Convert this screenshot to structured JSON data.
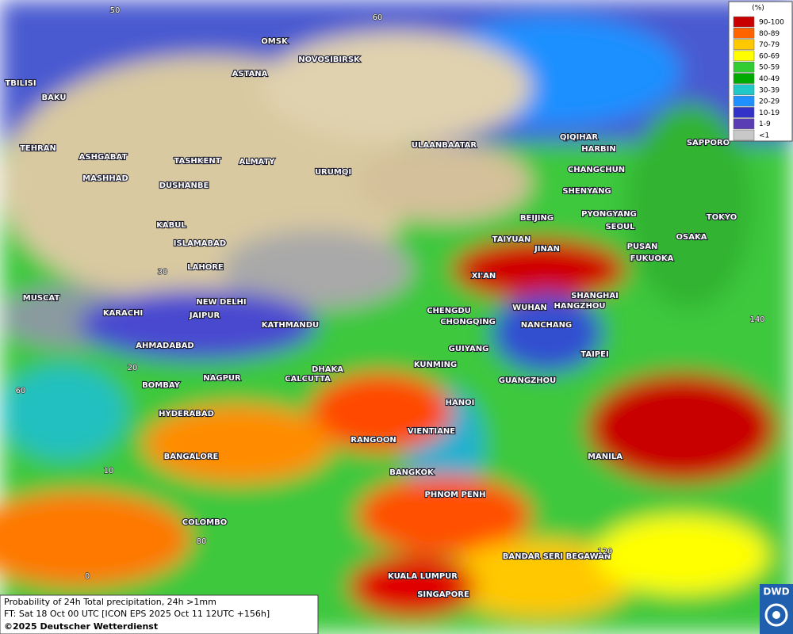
{
  "legend": {
    "unit": "(%)",
    "entries": [
      {
        "label": "90-100",
        "color": "#c80000"
      },
      {
        "label": "80-89",
        "color": "#ff6400"
      },
      {
        "label": "70-79",
        "color": "#ffc800"
      },
      {
        "label": "60-69",
        "color": "#ffff00"
      },
      {
        "label": "50-59",
        "color": "#32cd32"
      },
      {
        "label": "40-49",
        "color": "#00aa00"
      },
      {
        "label": "30-39",
        "color": "#20c8c8"
      },
      {
        "label": "20-29",
        "color": "#1e90ff"
      },
      {
        "label": "10-19",
        "color": "#3232c8"
      },
      {
        "label": "1-9",
        "color": "#5a3cb4"
      },
      {
        "label": "<1",
        "color": "#c8c8c8"
      }
    ]
  },
  "cities": [
    "OMSK",
    "NOVOSIBIRSK",
    "ASTANA",
    "TBILISI",
    "BAKU",
    "TEHRAN",
    "ASHGABAT",
    "MASHHAD",
    "TASHKENT",
    "ALMATY",
    "URUMQI",
    "DUSHANBE",
    "ULAANBAATAR",
    "QIQIHAR",
    "HARBIN",
    "CHANGCHUN",
    "SHENYANG",
    "BEIJING",
    "PYONGYANG",
    "SEOUL",
    "SAPPORO",
    "TOKYO",
    "OSAKA",
    "PUSAN",
    "FUKUOKA",
    "TAIYUAN",
    "JINAN",
    "KABUL",
    "ISLAMABAD",
    "LAHORE",
    "XI'AN",
    "NEW DELHI",
    "JAIPUR",
    "MUSCAT",
    "KARACHI",
    "KATHMANDU",
    "CHENGDU",
    "CHONGQING",
    "SHANGHAI",
    "WUHAN",
    "HANGZHOU",
    "NANCHANG",
    "AHMADABAD",
    "GUIYANG",
    "TAIPEI",
    "KUNMING",
    "DHAKA",
    "CALCUTTA",
    "NAGPUR",
    "BOMBAY",
    "GUANGZHOU",
    "HANOI",
    "HYDERABAD",
    "RANGOON",
    "VIENTIANE",
    "BANGALORE",
    "MANILA",
    "BANGKOK",
    "PHNOM PENH",
    "COLOMBO",
    "BANDAR SERI BEGAWAN",
    "KUALA LUMPUR",
    "SINGAPORE"
  ],
  "grid_labels": [
    50,
    60,
    30,
    20,
    60,
    140,
    10,
    80,
    0,
    120
  ],
  "footer": {
    "line1": "Probability of 24h Total precipitation, 24h >1mm",
    "line2": "FT: Sat 18 Oct 00 UTC [ICON EPS 2025 Oct 11 12UTC +156h]",
    "line3": "©2025 Deutscher Wetterdienst"
  },
  "logo": "DWD"
}
